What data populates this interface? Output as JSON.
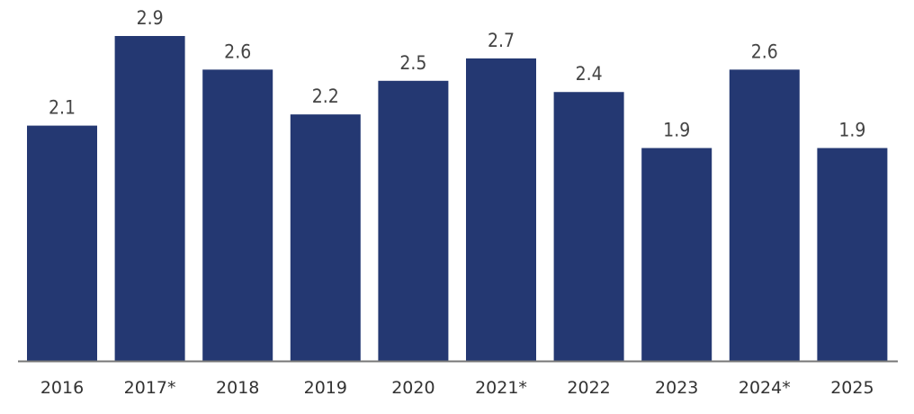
{
  "chart_data": {
    "type": "bar",
    "categories": [
      "2016",
      "2017*",
      "2018",
      "2019",
      "2020",
      "2021*",
      "2022",
      "2023",
      "2024*",
      "2025"
    ],
    "values": [
      2.1,
      2.9,
      2.6,
      2.2,
      2.5,
      2.7,
      2.4,
      1.9,
      2.6,
      1.9
    ],
    "value_labels": [
      "2.1",
      "2.9",
      "2.6",
      "2.2",
      "2.5",
      "2.7",
      "2.4",
      "1.9",
      "2.6",
      "1.9"
    ],
    "ylim": [
      0,
      2.9
    ],
    "grid": false,
    "colors": {
      "bar": "#243872",
      "axis": "#777777"
    }
  }
}
